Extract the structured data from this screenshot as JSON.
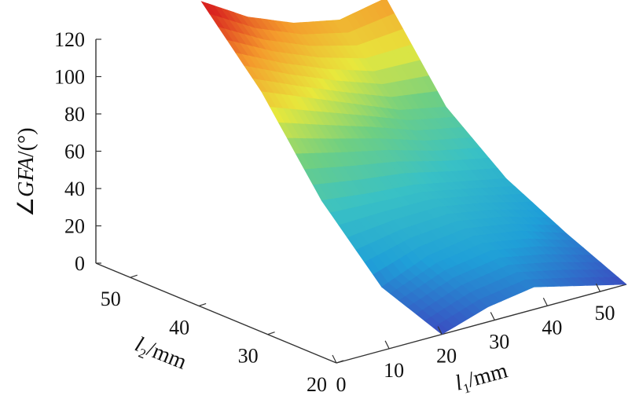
{
  "chart_data": {
    "type": "surface",
    "zlabel": {
      "prefix": "∠",
      "var": "GFA",
      "unit": "/(°)"
    },
    "xlabel": {
      "var": "l",
      "sub": "1",
      "unit": "/mm"
    },
    "ylabel": {
      "var": "l",
      "sub": "2",
      "unit": "/mm"
    },
    "z_ticks": [
      "0",
      "20",
      "40",
      "60",
      "80",
      "100",
      "120"
    ],
    "x_ticks": [
      "0",
      "10",
      "20",
      "30",
      "40",
      "50"
    ],
    "y_ticks": [
      "20",
      "30",
      "40",
      "50"
    ],
    "xlim": [
      0,
      55
    ],
    "ylim": [
      20,
      55
    ],
    "zlim": [
      0,
      120
    ],
    "x_range": [
      20,
      55
    ],
    "y_range": [
      20,
      55
    ],
    "z_approx": [
      [
        0,
        8,
        12,
        6,
        0
      ],
      [
        12,
        22,
        26,
        22,
        14
      ],
      [
        45,
        42,
        40,
        35,
        30
      ],
      [
        90,
        80,
        70,
        60,
        55
      ],
      [
        125,
        110,
        100,
        95,
        100
      ]
    ],
    "colormap": [
      "#3b4cc0",
      "#1f9fd8",
      "#39c1c5",
      "#6fcf82",
      "#e8e83c",
      "#f49a2c",
      "#d9231f"
    ]
  }
}
